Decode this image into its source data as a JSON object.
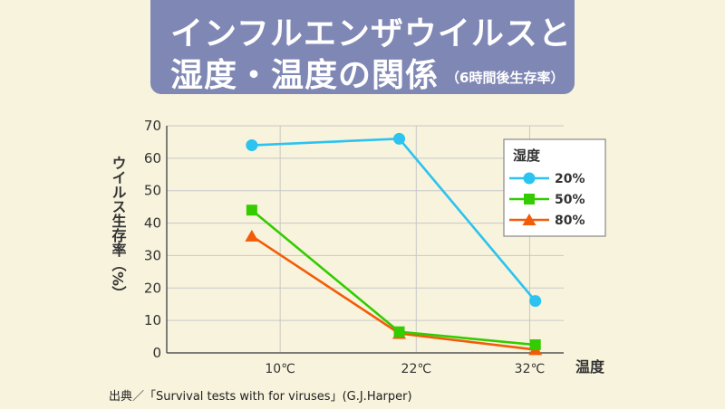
{
  "title": {
    "line1": "インフルエンザウイルスと",
    "line2": "湿度・温度の関係",
    "sub": "（6時間後生存率）"
  },
  "source": "出典／「Survival tests with for viruses」(G.J.Harper)",
  "colors": {
    "background": "#f8f3dc",
    "title_box": "#7f87b4",
    "grid": "#c8c8c8",
    "series_20": "#2bc3f0",
    "series_50": "#33cc00",
    "series_80": "#f25c08"
  },
  "chart_data": {
    "type": "line",
    "title": "インフルエンザウイルスと湿度・温度の関係（6時間後生存率）",
    "xlabel": "温度",
    "ylabel": "ウイルス生存率（%）",
    "x_ticks": [
      {
        "value": 10,
        "label": "10℃"
      },
      {
        "value": 22,
        "label": "22℃"
      },
      {
        "value": 32,
        "label": "32℃"
      }
    ],
    "y_ticks": [
      0,
      10,
      20,
      30,
      40,
      50,
      60,
      70
    ],
    "xlim": [
      0,
      35
    ],
    "ylim": [
      0,
      70
    ],
    "grid": true,
    "legend": {
      "title": "湿度",
      "position": "top-right"
    },
    "series": [
      {
        "name": "20%",
        "marker": "circle",
        "color": "#2bc3f0",
        "x": [
          7.5,
          20.5,
          32.5
        ],
        "y": [
          64,
          66,
          16
        ]
      },
      {
        "name": "50%",
        "marker": "square",
        "color": "#33cc00",
        "x": [
          7.5,
          20.5,
          32.5
        ],
        "y": [
          44,
          6.5,
          2.5
        ]
      },
      {
        "name": "80%",
        "marker": "triangle",
        "color": "#f25c08",
        "x": [
          7.5,
          20.5,
          32.5
        ],
        "y": [
          36,
          6,
          1
        ]
      }
    ]
  }
}
